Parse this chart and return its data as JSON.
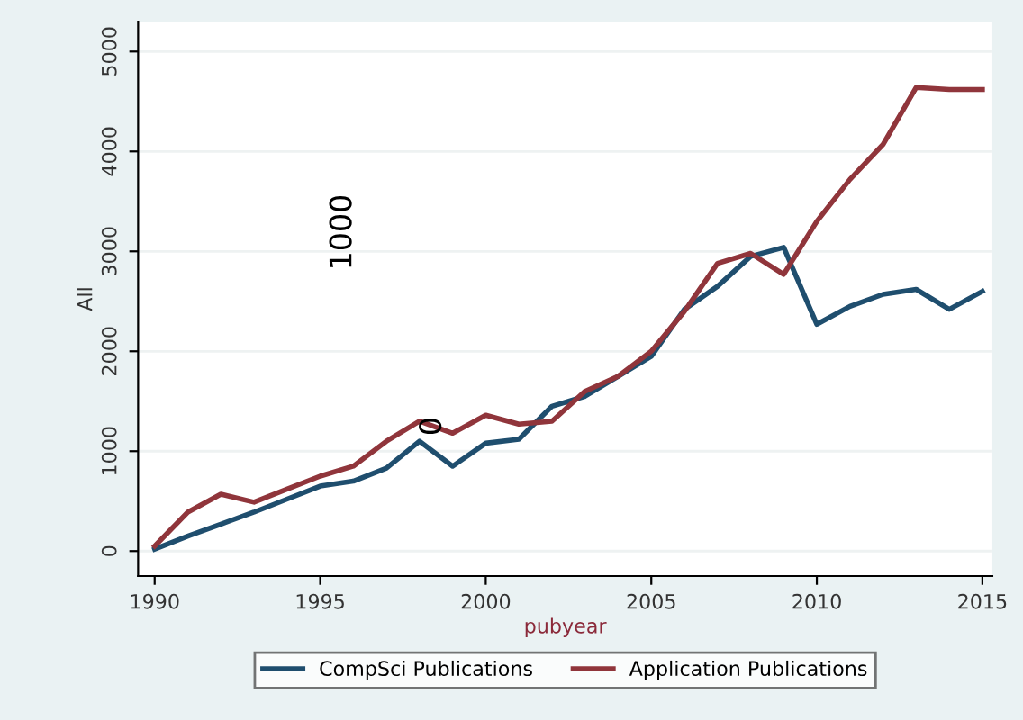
{
  "chart_data": {
    "type": "line",
    "xlabel": "pubyear",
    "ylabel": "All",
    "x": [
      1990,
      1991,
      1992,
      1993,
      1994,
      1995,
      1996,
      1997,
      1998,
      1999,
      2000,
      2001,
      2002,
      2003,
      2004,
      2005,
      2006,
      2007,
      2008,
      2009,
      2010,
      2011,
      2012,
      2013,
      2014,
      2015
    ],
    "series": [
      {
        "name": "CompSci Publications",
        "color": "#1f4e6e",
        "values": [
          20,
          150,
          270,
          390,
          520,
          650,
          700,
          830,
          1100,
          850,
          1080,
          1120,
          1450,
          1550,
          1750,
          1950,
          2420,
          2650,
          2950,
          3040,
          2270,
          2450,
          2570,
          2620,
          2420,
          2600
        ]
      },
      {
        "name": "Application Publications",
        "color": "#90353b",
        "values": [
          50,
          390,
          570,
          490,
          620,
          750,
          850,
          1100,
          1300,
          1180,
          1360,
          1270,
          1300,
          1600,
          1750,
          2000,
          2400,
          2880,
          2980,
          2770,
          3300,
          3720,
          4070,
          4640,
          4620,
          4620
        ]
      }
    ],
    "xlim": [
      1989.5,
      2015.3
    ],
    "xticks": [
      1990,
      1995,
      2000,
      2005,
      2010,
      2015
    ],
    "ylim": [
      -250,
      5300
    ],
    "yticks": [
      0,
      1000,
      2000,
      3000,
      4000,
      5000
    ],
    "grid": "y",
    "legend": "bottom",
    "marker": "none",
    "line_style": "solid",
    "annotations": [
      "1000",
      "0"
    ]
  }
}
